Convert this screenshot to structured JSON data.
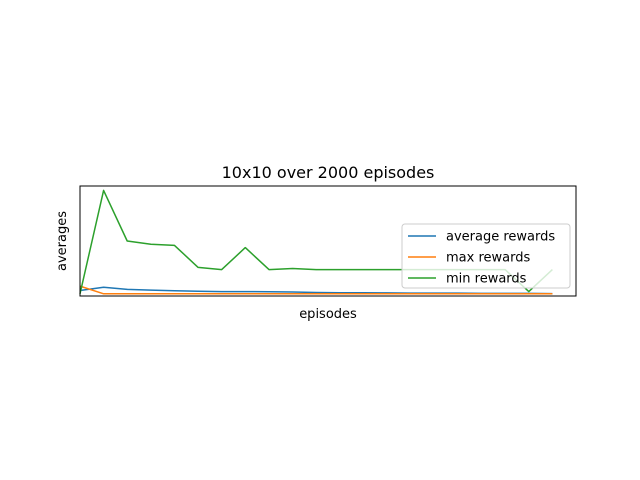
{
  "chart_data": {
    "type": "line",
    "title": "10x10 over 2000 episodes",
    "xlabel": "episodes",
    "ylabel": "averages",
    "x": [
      0,
      1,
      2,
      3,
      4,
      5,
      6,
      7,
      8,
      9,
      10,
      11,
      12,
      13,
      14,
      15,
      16,
      17,
      18,
      19,
      20
    ],
    "xlim": [
      0,
      21
    ],
    "ylim": [
      -0.1,
      4.9
    ],
    "grid": false,
    "xticks_visible": false,
    "yticks_visible": false,
    "legend_position": "center-right",
    "series": [
      {
        "name": "average rewards",
        "color": "#1f77b4",
        "values": [
          0.15,
          0.3,
          0.2,
          0.17,
          0.14,
          0.12,
          0.1,
          0.1,
          0.09,
          0.08,
          0.06,
          0.05,
          0.05,
          0.04,
          0.03,
          0.03,
          0.03,
          0.02,
          0.02,
          0.02,
          0.01
        ]
      },
      {
        "name": "max rewards",
        "color": "#ff7f0e",
        "values": [
          0.35,
          0.0,
          0.0,
          0.0,
          0.0,
          0.0,
          0.0,
          0.0,
          0.0,
          0.0,
          0.0,
          0.0,
          0.0,
          0.0,
          0.0,
          0.0,
          0.0,
          0.0,
          0.0,
          0.0,
          0.0
        ]
      },
      {
        "name": "min rewards",
        "color": "#2ca02c",
        "values": [
          0.0,
          4.7,
          2.4,
          2.25,
          2.2,
          1.2,
          1.1,
          2.1,
          1.1,
          1.15,
          1.1,
          1.1,
          1.1,
          1.1,
          1.1,
          1.1,
          1.1,
          1.1,
          1.1,
          0.1,
          1.1
        ]
      }
    ]
  }
}
